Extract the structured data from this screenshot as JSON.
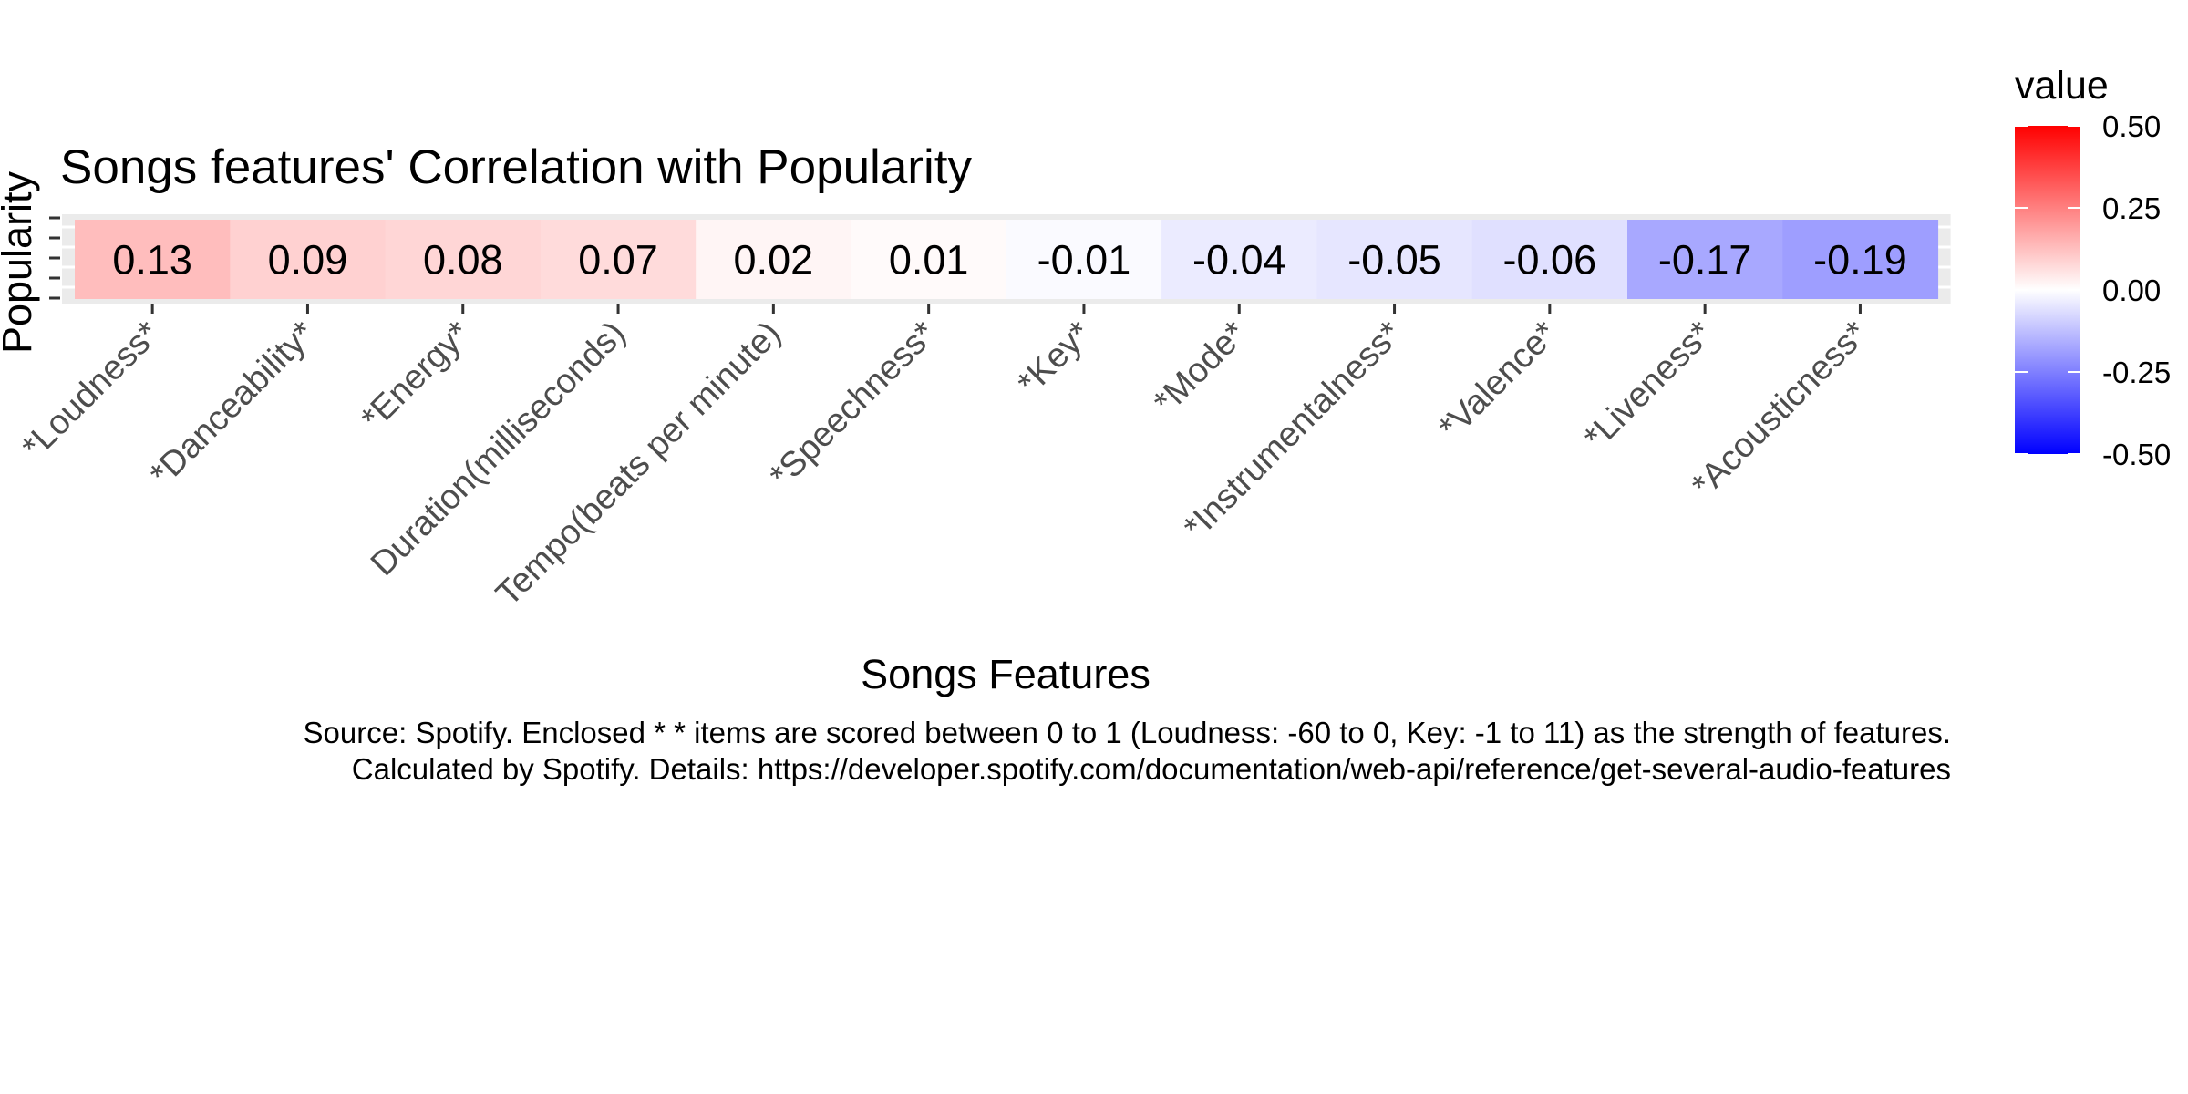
{
  "chart_data": {
    "type": "heatmap",
    "title": "Songs features' Correlation with Popularity",
    "xlabel": "Songs Features",
    "ylabel": "Popularity",
    "categories": [
      "*Loudness*",
      "*Danceability*",
      "*Energy*",
      "Duration(milliseconds)",
      "Tempo(beats per minute)",
      "*Speechness*",
      "*Key*",
      "*Mode*",
      "*Instrumentalness*",
      "*Valence*",
      "*Liveness*",
      "*Acousticness*"
    ],
    "values": [
      0.13,
      0.09,
      0.08,
      0.07,
      0.02,
      0.01,
      -0.01,
      -0.04,
      -0.05,
      -0.06,
      -0.17,
      -0.19
    ],
    "value_labels": [
      "0.13",
      "0.09",
      "0.08",
      "0.07",
      "0.02",
      "0.01",
      "-0.01",
      "-0.04",
      "-0.05",
      "-0.06",
      "-0.17",
      "-0.19"
    ],
    "legend": {
      "title": "value",
      "ticks": [
        0.5,
        0.25,
        0,
        -0.25,
        -0.5
      ],
      "tick_labels": [
        "0.50",
        "0.25",
        "0.00",
        "-0.25",
        "-0.50"
      ],
      "limits": [
        -0.5,
        0.5
      ],
      "placement": "right"
    },
    "colors": {
      "low": "#0000ff",
      "mid": "#ffffff",
      "high": "#ff0000"
    },
    "caption": [
      "Source: Spotify. Enclosed * * items are scored between 0 to 1 (Loudness: -60 to 0, Key: -1 to 11) as the strength of features.",
      "Calculated by Spotify. Details: https://developer.spotify.com/documentation/web-api/reference/get-several-audio-features"
    ]
  }
}
